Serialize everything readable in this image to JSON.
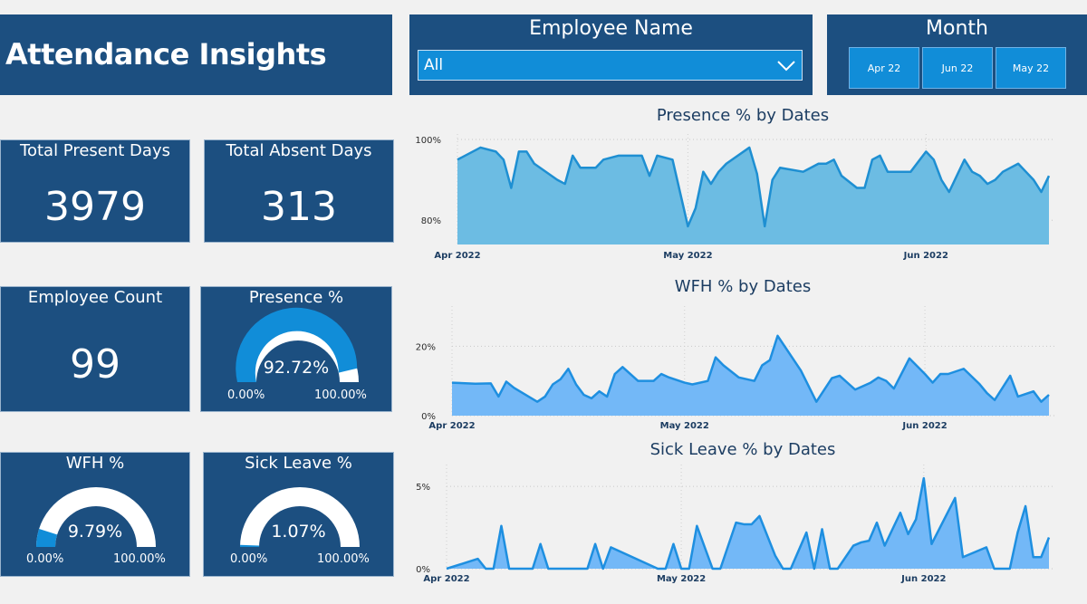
{
  "header": {
    "title": "Attendance Insights"
  },
  "employee_slicer": {
    "title": "Employee Name",
    "value": "All"
  },
  "month_slicer": {
    "title": "Month",
    "options": [
      "Apr 22",
      "Jun 22",
      "May 22"
    ]
  },
  "kpis": {
    "present_days": {
      "label": "Total Present Days",
      "value": "3979"
    },
    "absent_days": {
      "label": "Total Absent Days",
      "value": "313"
    },
    "employee_count": {
      "label": "Employee Count",
      "value": "99"
    }
  },
  "gauges": {
    "presence": {
      "label": "Presence %",
      "value_text": "92.72%",
      "fraction": 0.9272,
      "min": "0.00%",
      "max": "100.00%"
    },
    "wfh": {
      "label": "WFH %",
      "value_text": "9.79%",
      "fraction": 0.0979,
      "min": "0.00%",
      "max": "100.00%"
    },
    "sick": {
      "label": "Sick Leave %",
      "value_text": "1.07%",
      "fraction": 0.0107,
      "min": "0.00%",
      "max": "100.00%"
    }
  },
  "colors": {
    "panel": "#1c4f80",
    "accent": "#118dd8",
    "presence_fill": "#6cbce3",
    "presence_line": "#1e8fd2",
    "wfh_fill": "#73b8f7",
    "wfh_line": "#1e8fe0"
  },
  "chart_data": [
    {
      "type": "area",
      "title": "Presence % by Dates",
      "x_ticks": [
        "Apr 2022",
        "May 2022",
        "Jun 2022"
      ],
      "y_ticks": [
        "100%",
        "80%"
      ],
      "ylim": [
        74,
        100
      ],
      "x_range": [
        "2022-04-01",
        "2022-06-17"
      ],
      "grid": true,
      "x": [
        "2022-04-01",
        "2022-04-04",
        "2022-04-06",
        "2022-04-07",
        "2022-04-08",
        "2022-04-09",
        "2022-04-10",
        "2022-04-11",
        "2022-04-14",
        "2022-04-15",
        "2022-04-16",
        "2022-04-17",
        "2022-04-19",
        "2022-04-20",
        "2022-04-22",
        "2022-04-25",
        "2022-04-26",
        "2022-04-27",
        "2022-04-28",
        "2022-04-29",
        "2022-05-01",
        "2022-05-02",
        "2022-05-03",
        "2022-05-04",
        "2022-05-05",
        "2022-05-06",
        "2022-05-09",
        "2022-05-10",
        "2022-05-11",
        "2022-05-12",
        "2022-05-13",
        "2022-05-16",
        "2022-05-17",
        "2022-05-18",
        "2022-05-19",
        "2022-05-20",
        "2022-05-21",
        "2022-05-23",
        "2022-05-24",
        "2022-05-25",
        "2022-05-26",
        "2022-05-27",
        "2022-05-30",
        "2022-06-01",
        "2022-06-02",
        "2022-06-03",
        "2022-06-04",
        "2022-06-06",
        "2022-06-07",
        "2022-06-08",
        "2022-06-09",
        "2022-06-10",
        "2022-06-11",
        "2022-06-13",
        "2022-06-14",
        "2022-06-15",
        "2022-06-16",
        "2022-06-17"
      ],
      "y": [
        95,
        98,
        97,
        95,
        88,
        97,
        97,
        94,
        90,
        89,
        96,
        93,
        93,
        95,
        96,
        96,
        91,
        96,
        95.5,
        95,
        78.5,
        83,
        92,
        89,
        92,
        94,
        98,
        91.5,
        78.5,
        90,
        93,
        92,
        93,
        94,
        94,
        95,
        91,
        88,
        88,
        95,
        96,
        92,
        92,
        97,
        95,
        90,
        87,
        95,
        92,
        91,
        89,
        90,
        92,
        94,
        92,
        90,
        87,
        91
      ]
    },
    {
      "type": "area",
      "title": "WFH % by Dates",
      "x_ticks": [
        "Apr 2022",
        "May 2022",
        "Jun 2022"
      ],
      "y_ticks": [
        "20%",
        "0%"
      ],
      "ylim": [
        0,
        30
      ],
      "x_range": [
        "2022-04-01",
        "2022-06-17"
      ],
      "grid": true,
      "x": [
        "2022-04-01",
        "2022-04-04",
        "2022-04-06",
        "2022-04-07",
        "2022-04-08",
        "2022-04-09",
        "2022-04-12",
        "2022-04-13",
        "2022-04-14",
        "2022-04-15",
        "2022-04-16",
        "2022-04-17",
        "2022-04-18",
        "2022-04-19",
        "2022-04-20",
        "2022-04-21",
        "2022-04-22",
        "2022-04-23",
        "2022-04-25",
        "2022-04-27",
        "2022-04-28",
        "2022-04-29",
        "2022-05-01",
        "2022-05-02",
        "2022-05-04",
        "2022-05-05",
        "2022-05-06",
        "2022-05-08",
        "2022-05-10",
        "2022-05-11",
        "2022-05-12",
        "2022-05-13",
        "2022-05-16",
        "2022-05-18",
        "2022-05-20",
        "2022-05-21",
        "2022-05-23",
        "2022-05-25",
        "2022-05-26",
        "2022-05-27",
        "2022-05-28",
        "2022-05-30",
        "2022-06-01",
        "2022-06-02",
        "2022-06-03",
        "2022-06-04",
        "2022-06-06",
        "2022-06-08",
        "2022-06-09",
        "2022-06-10",
        "2022-06-12",
        "2022-06-13",
        "2022-06-15",
        "2022-06-16",
        "2022-06-17"
      ],
      "y": [
        9.5,
        9.2,
        9.3,
        5.5,
        9.8,
        8,
        4,
        5.5,
        9,
        10.5,
        13.5,
        9,
        6,
        5,
        7,
        5.5,
        12,
        14,
        10,
        10,
        12,
        11,
        9.5,
        9,
        10,
        16.8,
        14.5,
        11,
        10,
        14.5,
        16,
        23,
        13,
        4,
        10.8,
        11.5,
        7.5,
        9.5,
        11,
        10,
        7.8,
        16.5,
        12,
        9.5,
        12,
        12,
        13.5,
        9.2,
        6.5,
        4.5,
        11.5,
        5.5,
        7,
        4,
        6
      ]
    },
    {
      "type": "area",
      "title": "Sick Leave % by Dates",
      "x_ticks": [
        "Apr 2022",
        "May 2022",
        "Jun 2022"
      ],
      "y_ticks": [
        "5%",
        "0%"
      ],
      "ylim": [
        0,
        6
      ],
      "x_range": [
        "2022-04-01",
        "2022-06-17"
      ],
      "grid": true,
      "x": [
        "2022-04-01",
        "2022-04-05",
        "2022-04-06",
        "2022-04-07",
        "2022-04-08",
        "2022-04-09",
        "2022-04-12",
        "2022-04-13",
        "2022-04-14",
        "2022-04-19",
        "2022-04-20",
        "2022-04-21",
        "2022-04-22",
        "2022-04-28",
        "2022-04-29",
        "2022-04-30",
        "2022-05-01",
        "2022-05-02",
        "2022-05-03",
        "2022-05-05",
        "2022-05-06",
        "2022-05-08",
        "2022-05-09",
        "2022-05-10",
        "2022-05-11",
        "2022-05-13",
        "2022-05-14",
        "2022-05-15",
        "2022-05-17",
        "2022-05-18",
        "2022-05-19",
        "2022-05-20",
        "2022-05-21",
        "2022-05-23",
        "2022-05-24",
        "2022-05-25",
        "2022-05-26",
        "2022-05-27",
        "2022-05-29",
        "2022-05-30",
        "2022-05-31",
        "2022-06-01",
        "2022-06-02",
        "2022-06-05",
        "2022-06-06",
        "2022-06-09",
        "2022-06-10",
        "2022-06-11",
        "2022-06-12",
        "2022-06-13",
        "2022-06-14",
        "2022-06-15",
        "2022-06-16",
        "2022-06-17"
      ],
      "y": [
        0,
        0.6,
        0,
        0,
        2.6,
        0,
        0,
        1.5,
        0,
        0,
        1.5,
        0,
        1.3,
        0,
        0,
        1.5,
        0,
        0,
        2.6,
        0,
        0,
        2.8,
        2.7,
        2.7,
        3.2,
        0.8,
        0,
        0,
        2.2,
        0,
        2.4,
        0,
        0,
        1.4,
        1.6,
        1.7,
        2.8,
        1.4,
        3.4,
        2.1,
        3.0,
        5.5,
        1.5,
        4.3,
        0.7,
        1.3,
        0,
        0,
        0,
        2.2,
        3.8,
        0.7,
        0.7,
        1.9
      ]
    }
  ]
}
